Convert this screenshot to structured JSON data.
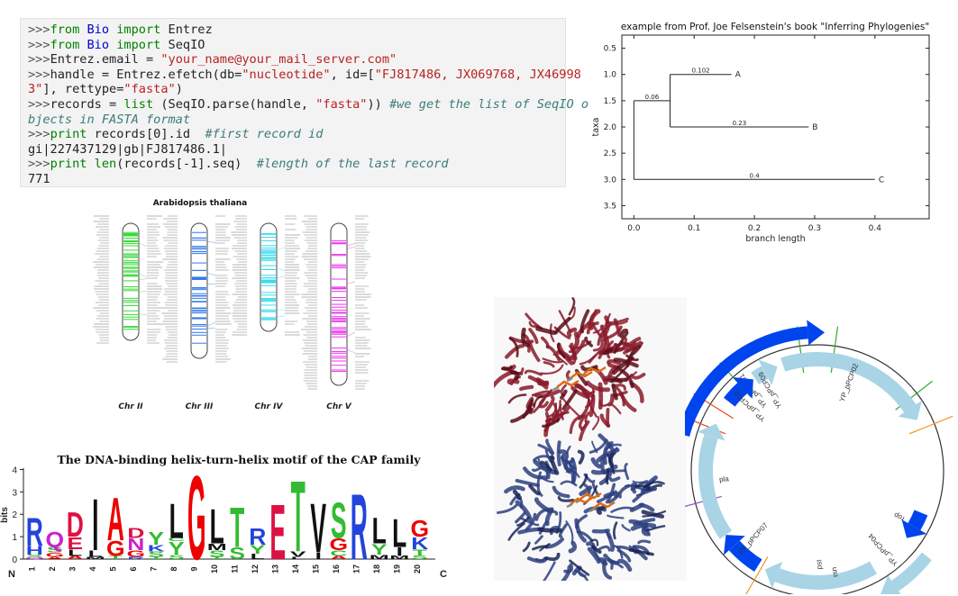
{
  "code_lines": [
    [
      {
        "t": ">>>",
        "c": "pr"
      },
      {
        "t": "from ",
        "c": "kw"
      },
      {
        "t": "Bio ",
        "c": "bl"
      },
      {
        "t": "import ",
        "c": "kw"
      },
      {
        "t": "Entrez",
        "c": ""
      }
    ],
    [
      {
        "t": ">>>",
        "c": "pr"
      },
      {
        "t": "from ",
        "c": "kw"
      },
      {
        "t": "Bio ",
        "c": "bl"
      },
      {
        "t": "import ",
        "c": "kw"
      },
      {
        "t": "SeqIO",
        "c": ""
      }
    ],
    [
      {
        "t": ">>>",
        "c": "pr"
      },
      {
        "t": "Entrez.email = ",
        "c": ""
      },
      {
        "t": "\"your_name@your_mail_server.com\"",
        "c": "st"
      }
    ],
    [
      {
        "t": ">>>",
        "c": "pr"
      },
      {
        "t": "handle = Entrez.efetch(db=",
        "c": ""
      },
      {
        "t": "\"nucleotide\"",
        "c": "st"
      },
      {
        "t": ", id=[",
        "c": ""
      },
      {
        "t": "\"FJ817486, JX069768, JX46998",
        "c": "st"
      }
    ],
    [
      {
        "t": "3\"",
        "c": "st"
      },
      {
        "t": "], rettype=",
        "c": ""
      },
      {
        "t": "\"fasta\"",
        "c": "st"
      },
      {
        "t": ")",
        "c": ""
      }
    ],
    [
      {
        "t": ">>>",
        "c": "pr"
      },
      {
        "t": "records = ",
        "c": ""
      },
      {
        "t": "list ",
        "c": "kw"
      },
      {
        "t": "(SeqIO.parse(handle, ",
        "c": ""
      },
      {
        "t": "\"fasta\"",
        "c": "st"
      },
      {
        "t": ")) ",
        "c": ""
      },
      {
        "t": "#we get the list of SeqIO o",
        "c": "cm"
      }
    ],
    [
      {
        "t": "bjects in FASTA format",
        "c": "cm"
      }
    ],
    [
      {
        "t": ">>>",
        "c": "pr"
      },
      {
        "t": "print ",
        "c": "kw"
      },
      {
        "t": "records[0].id  ",
        "c": ""
      },
      {
        "t": "#first record id",
        "c": "cm"
      }
    ],
    [
      {
        "t": "gi|227437129|gb|FJ817486.1|",
        "c": ""
      }
    ],
    [
      {
        "t": ">>>",
        "c": "pr"
      },
      {
        "t": "print ",
        "c": "kw"
      },
      {
        "t": "len",
        "c": "kw"
      },
      {
        "t": "(records[-1].seq)  ",
        "c": ""
      },
      {
        "t": "#length of the last record",
        "c": "cm"
      }
    ],
    [
      {
        "t": "771",
        "c": ""
      }
    ]
  ],
  "chart_data": [
    {
      "type": "diagram",
      "kind": "phylogenetic-tree",
      "title": "example from Prof. Joe Felsenstein's book \"Inferring Phylogenies\"",
      "xlabel": "branch length",
      "ylabel": "taxa",
      "xlim": [
        -0.02,
        0.49
      ],
      "ylim": [
        3.75,
        0.25
      ],
      "xticks": [
        "0.0",
        "0.1",
        "0.2",
        "0.3",
        "0.4"
      ],
      "yticks": [
        "0.5",
        "1.0",
        "1.5",
        "2.0",
        "2.5",
        "3.0",
        "3.5"
      ],
      "nodes": {
        "root": {
          "x": 0,
          "y0": 1.5,
          "y1": 3.0
        },
        "internal": {
          "x": 0.06,
          "y0": 1.0,
          "y1": 2.0,
          "y": 1.5
        }
      },
      "branches": [
        {
          "label": "0.06",
          "x0": 0,
          "x1": 0.06,
          "y": 1.5
        },
        {
          "label": "0.102",
          "x0": 0.06,
          "x1": 0.162,
          "y": 1.0,
          "tip": "A"
        },
        {
          "label": "0.23",
          "x0": 0.06,
          "x1": 0.29,
          "y": 2.0,
          "tip": "B"
        },
        {
          "label": "0.4",
          "x0": 0,
          "x1": 0.4,
          "y": 3.0,
          "tip": "C"
        }
      ]
    },
    {
      "type": "diagram",
      "kind": "chromosome-map",
      "title": "Arabidopsis thaliana",
      "chromosomes": [
        {
          "name": "Chr II",
          "color": "#33dd33",
          "top": 248,
          "bottom": 378
        },
        {
          "name": "Chr III",
          "color": "#3377ee",
          "top": 248,
          "bottom": 398
        },
        {
          "name": "Chr IV",
          "color": "#33ddee",
          "top": 248,
          "bottom": 368
        },
        {
          "name": "Chr V",
          "color": "#ee33ee",
          "top": 248,
          "bottom": 428
        }
      ]
    },
    {
      "type": "diagram",
      "kind": "sequence-logo",
      "title": "The DNA-binding helix-turn-helix motif of the CAP family",
      "ylabel": "bits",
      "ylim": [
        0,
        4.3
      ],
      "yticks": [
        "0",
        "1",
        "2",
        "3",
        "4"
      ],
      "n_label": "N",
      "c_label": "C",
      "positions": [
        {
          "pos": "1",
          "stack": [
            [
              "Q",
              0.08
            ],
            [
              "S",
              0.12
            ],
            [
              "H",
              0.4
            ],
            [
              "R",
              1.3
            ]
          ]
        },
        {
          "pos": "2",
          "stack": [
            [
              "A",
              0.1
            ],
            [
              "G",
              0.2
            ],
            [
              "S",
              0.25
            ],
            [
              "Q",
              0.7
            ]
          ]
        },
        {
          "pos": "3",
          "stack": [
            [
              "A",
              0.15
            ],
            [
              "L",
              0.3
            ],
            [
              "E",
              0.55
            ],
            [
              "D",
              1.15
            ]
          ]
        },
        {
          "pos": "4",
          "stack": [
            [
              "M",
              0.1
            ],
            [
              "L",
              0.3
            ],
            [
              "I",
              2.4
            ]
          ]
        },
        {
          "pos": "5",
          "stack": [
            [
              "T",
              0.15
            ],
            [
              "G",
              0.7
            ],
            [
              "A",
              2.0
            ]
          ]
        },
        {
          "pos": "6",
          "stack": [
            [
              "R",
              0.1
            ],
            [
              "G",
              0.3
            ],
            [
              "N",
              0.55
            ],
            [
              "D",
              0.45
            ]
          ]
        },
        {
          "pos": "7",
          "stack": [
            [
              "T",
              0.1
            ],
            [
              "S",
              0.25
            ],
            [
              "K",
              0.3
            ],
            [
              "Y",
              0.6
            ]
          ]
        },
        {
          "pos": "8",
          "stack": [
            [
              "S",
              0.2
            ],
            [
              "Y",
              0.6
            ],
            [
              "C",
              0.15
            ],
            [
              "L",
              1.6
            ]
          ]
        },
        {
          "pos": "9",
          "stack": [
            [
              "G",
              3.9
            ]
          ]
        },
        {
          "pos": "10",
          "stack": [
            [
              "T",
              0.1
            ],
            [
              "S",
              0.3
            ],
            [
              "M",
              0.3
            ],
            [
              "L",
              1.6
            ]
          ]
        },
        {
          "pos": "11",
          "stack": [
            [
              "S",
              0.55
            ],
            [
              "T",
              1.85
            ]
          ]
        },
        {
          "pos": "12",
          "stack": [
            [
              "L",
              0.25
            ],
            [
              "Y",
              0.4
            ],
            [
              "R",
              0.75
            ]
          ]
        },
        {
          "pos": "13",
          "stack": [
            [
              "E",
              2.55
            ]
          ]
        },
        {
          "pos": "14",
          "stack": [
            [
              "L",
              0.1
            ],
            [
              "V",
              0.25
            ],
            [
              "T",
              3.3
            ]
          ]
        },
        {
          "pos": "15",
          "stack": [
            [
              "I",
              0.3
            ],
            [
              "V",
              2.3
            ]
          ]
        },
        {
          "pos": "16",
          "stack": [
            [
              "A",
              0.15
            ],
            [
              "C",
              0.25
            ],
            [
              "G",
              0.55
            ],
            [
              "S",
              1.65
            ]
          ]
        },
        {
          "pos": "17",
          "stack": [
            [
              "R",
              3.05
            ]
          ]
        },
        {
          "pos": "18",
          "stack": [
            [
              "M",
              0.2
            ],
            [
              "Y",
              0.5
            ],
            [
              "L",
              1.2
            ]
          ]
        },
        {
          "pos": "19",
          "stack": [
            [
              "M",
              0.15
            ],
            [
              "I",
              0.4
            ],
            [
              "L",
              1.3
            ]
          ]
        },
        {
          "pos": "20",
          "stack": [
            [
              "S",
              0.15
            ],
            [
              "T",
              0.3
            ],
            [
              "K",
              0.55
            ],
            [
              "G",
              0.75
            ]
          ]
        }
      ]
    },
    {
      "type": "diagram",
      "kind": "plasmid-map",
      "features": [
        {
          "label": "YP_pPCP01",
          "start": -75,
          "end": 0,
          "color": "#0044ee",
          "track": "outer"
        },
        {
          "label": "YP_pPCP02",
          "start": -18,
          "end": 60,
          "color": "#a8d4e6",
          "track": "inner"
        },
        {
          "label": "rop",
          "start": 112,
          "end": 124,
          "color": "#0044ee",
          "track": "inner"
        },
        {
          "label": "YP_pPCP04",
          "start": 128,
          "end": 150,
          "color": "#a8d4e6",
          "track": "outer"
        },
        {
          "label": "pst",
          "start": 150,
          "end": 205,
          "color": "#a8d4e6",
          "track": "inner"
        },
        {
          "label": "rsn",
          "start": 160,
          "end": 178,
          "color": "#0044ee",
          "track": "outer"
        },
        {
          "label": "YP_pPCP07",
          "start": 212,
          "end": 232,
          "color": "#0044ee",
          "track": "inner"
        },
        {
          "label": "pla",
          "start": 235,
          "end": 292,
          "color": "#a8d4e6",
          "track": "inner"
        },
        {
          "label": "YP_pPCP10",
          "start": 308,
          "end": 322,
          "color": "#0044ee",
          "track": "inner"
        },
        {
          "label": "YP_pPCP09",
          "start": 326,
          "end": 336,
          "color": "#a8d4e6",
          "track": "inner"
        }
      ]
    }
  ]
}
